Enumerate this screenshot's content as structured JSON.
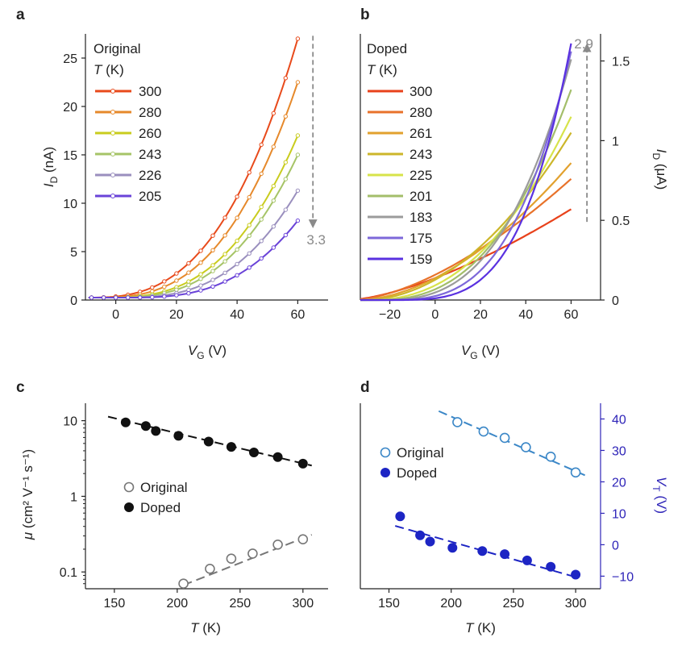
{
  "colors": {
    "axis": "#222222",
    "arrow": "#8a8a8a",
    "annot": "#8a8a8a",
    "vt_axis": "#2e24b8",
    "orig_mu": "#777777",
    "doped_mu": "#111111",
    "orig_vt": "#3b87c7",
    "doped_vt": "#1d25c4"
  },
  "chart_data": [
    {
      "id": "a",
      "panel_label": "a",
      "type": "line",
      "xlabel": "V",
      "xlabel_sub": "G",
      "xlabel_unit": "(V)",
      "ylabel": "I",
      "ylabel_sub": "D",
      "ylabel_unit": "(nA)",
      "xlim": [
        -10,
        70
      ],
      "ylim": [
        0,
        27.5
      ],
      "xticks": [
        0,
        20,
        40,
        60
      ],
      "yticks": [
        0,
        5,
        10,
        15,
        20,
        25
      ],
      "legend_title": "Original",
      "legend_subtitle_var": "T",
      "legend_subtitle_unit": "(K)",
      "legend_position": "top-left",
      "markers": true,
      "model": {
        "v_on": -10,
        "v_max": 60,
        "exponent": 2.8
      },
      "series": [
        {
          "name": "300",
          "color": "#e84a1b",
          "y_max": 27.0,
          "v_shift": 0
        },
        {
          "name": "280",
          "color": "#e6892b",
          "y_max": 22.5,
          "v_shift": 3
        },
        {
          "name": "260",
          "color": "#c9cc1e",
          "y_max": 17.0,
          "v_shift": 6
        },
        {
          "name": "243",
          "color": "#a6c467",
          "y_max": 15.0,
          "v_shift": 8
        },
        {
          "name": "226",
          "color": "#9a8fbe",
          "y_max": 11.3,
          "v_shift": 11
        },
        {
          "name": "205",
          "color": "#6a43d8",
          "y_max": 8.2,
          "v_shift": 14
        }
      ],
      "annotation": {
        "text": "3.3",
        "direction": "down",
        "x": 65,
        "y_from": 27.3,
        "y_to": 7.6
      }
    },
    {
      "id": "b",
      "panel_label": "b",
      "type": "line",
      "xlabel": "V",
      "xlabel_sub": "G",
      "xlabel_unit": "(V)",
      "ylabel": "I",
      "ylabel_sub": "D",
      "ylabel_unit": "(μA)",
      "ylabel_side": "right",
      "xlim": [
        -33,
        73
      ],
      "ylim": [
        0,
        1.67
      ],
      "xticks": [
        -20,
        0,
        20,
        40,
        60
      ],
      "yticks": [
        0,
        0.5,
        1,
        1.5
      ],
      "ytick_labels": [
        "0",
        "0.5",
        "1",
        "1.5"
      ],
      "legend_title": "Doped",
      "legend_subtitle_var": "T",
      "legend_subtitle_unit": "(K)",
      "legend_position": "top-left",
      "markers": false,
      "series": [
        {
          "name": "300",
          "color": "#e8421b",
          "v_t": -38,
          "n": 1.5,
          "slope": 0.005,
          "y_end": 0.57
        },
        {
          "name": "280",
          "color": "#e8722a",
          "v_t": -36,
          "n": 1.6,
          "slope": 0.008,
          "y_end": 0.76
        },
        {
          "name": "261",
          "color": "#e2a12e",
          "v_t": -34,
          "n": 1.8,
          "slope": 0.009,
          "y_end": 0.86
        },
        {
          "name": "243",
          "color": "#ccb62a",
          "v_t": -32,
          "n": 2.0,
          "slope": 0.013,
          "y_end": 1.05
        },
        {
          "name": "225",
          "color": "#d7e34a",
          "v_t": -30,
          "n": 2.3,
          "slope": 0.016,
          "y_end": 1.15
        },
        {
          "name": "201",
          "color": "#a3be6a",
          "v_t": -28,
          "n": 2.6,
          "slope": 0.018,
          "y_end": 1.32
        },
        {
          "name": "183",
          "color": "#9b9b9b",
          "v_t": -26,
          "n": 2.9,
          "slope": 0.021,
          "y_end": 1.51
        },
        {
          "name": "175",
          "color": "#7d68d9",
          "v_t": -24,
          "n": 3.3,
          "slope": 0.022,
          "y_end": 1.56
        },
        {
          "name": "159",
          "color": "#5a31e0",
          "v_t": -22,
          "n": 3.8,
          "slope": 0.023,
          "y_end": 1.61
        }
      ],
      "annotation": {
        "text": "2.9",
        "direction": "up",
        "x": 67,
        "y_from": 0.49,
        "y_to": 1.6
      }
    },
    {
      "id": "c",
      "panel_label": "c",
      "type": "scatter",
      "xlabel": "T",
      "xlabel_unit": "(K)",
      "ylabel": "μ",
      "ylabel_unit": "(cm² V⁻¹ s⁻¹)",
      "yscale": "log",
      "xlim": [
        127,
        320
      ],
      "ylim": [
        0.06,
        17
      ],
      "xticks": [
        150,
        200,
        250,
        300
      ],
      "yticks": [
        0.1,
        1,
        10
      ],
      "ytick_labels": [
        "0.1",
        "1",
        "10"
      ],
      "legend_position": "center-left",
      "series": [
        {
          "name": "Original",
          "filled": false,
          "color_key": "orig_mu",
          "x": [
            205,
            226,
            243,
            260,
            280,
            300
          ],
          "y": [
            0.07,
            0.11,
            0.15,
            0.175,
            0.23,
            0.27
          ],
          "fit": {
            "x": [
              205,
              307
            ],
            "y": [
              0.067,
              0.31
            ]
          }
        },
        {
          "name": "Doped",
          "filled": true,
          "color_key": "doped_mu",
          "x": [
            159,
            175,
            183,
            201,
            225,
            243,
            261,
            280,
            300
          ],
          "y": [
            9.5,
            8.5,
            7.3,
            6.3,
            5.3,
            4.5,
            3.8,
            3.3,
            2.7
          ],
          "fit": {
            "x": [
              145,
              307
            ],
            "y": [
              11.3,
              2.55
            ]
          }
        }
      ]
    },
    {
      "id": "d",
      "panel_label": "d",
      "type": "scatter",
      "xlabel": "T",
      "xlabel_unit": "(K)",
      "ylabel": "V",
      "ylabel_sub": "T",
      "ylabel_unit": "(V)",
      "ylabel_side": "right",
      "xlim": [
        127,
        320
      ],
      "ylim": [
        -14,
        45
      ],
      "xticks": [
        150,
        200,
        250,
        300
      ],
      "yticks": [
        -10,
        0,
        10,
        20,
        30,
        40
      ],
      "ytick_labels": [
        "−10",
        "0",
        "10",
        "20",
        "30",
        "40"
      ],
      "legend_position": "upper-left",
      "series": [
        {
          "name": "Original",
          "filled": false,
          "color_key": "orig_vt",
          "x": [
            205,
            226,
            243,
            260,
            280,
            300
          ],
          "y": [
            39,
            36,
            34,
            31,
            28,
            23
          ],
          "fit": {
            "x": [
              190,
              308
            ],
            "y": [
              42.5,
              22
            ]
          }
        },
        {
          "name": "Doped",
          "filled": true,
          "color_key": "doped_vt",
          "x": [
            159,
            175,
            183,
            201,
            225,
            243,
            261,
            280,
            300
          ],
          "y": [
            9,
            3,
            1,
            -1,
            -2,
            -3,
            -5,
            -7,
            -9.5
          ],
          "fit": {
            "x": [
              155,
              302
            ],
            "y": [
              6,
              -10.5
            ]
          }
        }
      ]
    }
  ]
}
